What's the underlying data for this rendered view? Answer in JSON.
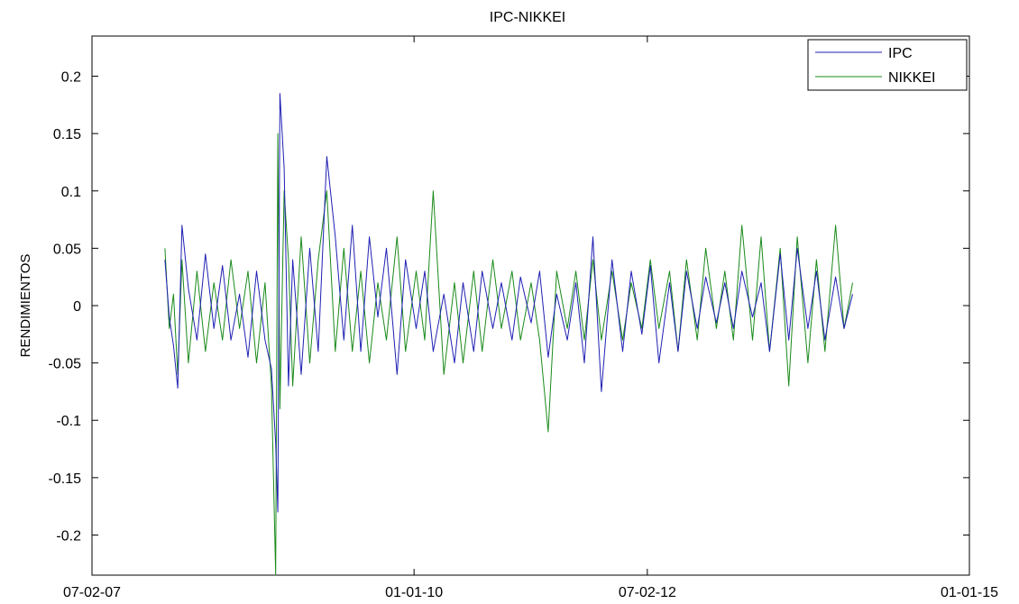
{
  "chart_data": {
    "type": "line",
    "title": "IPC-NIKKEI",
    "xlabel": "",
    "ylabel": "RENDIMIENTOS",
    "x_ticks": [
      "07-02-07",
      "01-01-10",
      "07-02-12",
      "01-01-15"
    ],
    "y_ticks": [
      "-0.2",
      "-0.15",
      "-0.1",
      "-0.05",
      "0",
      "0.05",
      "0.1",
      "0.15",
      "0.2"
    ],
    "ylim": [
      -0.235,
      0.235
    ],
    "legend_position": "top-right",
    "grid": false,
    "series": [
      {
        "name": "IPC",
        "color": "#1f1fb4",
        "points": [
          [
            "2007-10-05",
            0.04
          ],
          [
            "2007-10-19",
            -0.01
          ],
          [
            "2007-11-02",
            -0.035
          ],
          [
            "2007-11-16",
            -0.072
          ],
          [
            "2007-11-30",
            0.07
          ],
          [
            "2007-12-21",
            0.015
          ],
          [
            "2008-01-18",
            -0.03
          ],
          [
            "2008-02-15",
            0.045
          ],
          [
            "2008-03-14",
            -0.02
          ],
          [
            "2008-04-11",
            0.035
          ],
          [
            "2008-05-09",
            -0.03
          ],
          [
            "2008-06-06",
            0.01
          ],
          [
            "2008-07-04",
            -0.045
          ],
          [
            "2008-08-01",
            0.03
          ],
          [
            "2008-08-29",
            -0.03
          ],
          [
            "2008-09-19",
            -0.055
          ],
          [
            "2008-10-03",
            -0.12
          ],
          [
            "2008-10-10",
            -0.18
          ],
          [
            "2008-10-17",
            0.185
          ],
          [
            "2008-10-31",
            0.12
          ],
          [
            "2008-11-14",
            -0.07
          ],
          [
            "2008-11-28",
            0.04
          ],
          [
            "2008-12-26",
            -0.06
          ],
          [
            "2009-01-23",
            0.05
          ],
          [
            "2009-02-20",
            -0.04
          ],
          [
            "2009-03-20",
            0.13
          ],
          [
            "2009-04-17",
            0.06
          ],
          [
            "2009-05-15",
            -0.03
          ],
          [
            "2009-06-12",
            0.07
          ],
          [
            "2009-07-10",
            -0.04
          ],
          [
            "2009-08-07",
            0.06
          ],
          [
            "2009-09-04",
            -0.01
          ],
          [
            "2009-10-02",
            0.05
          ],
          [
            "2009-11-06",
            -0.06
          ],
          [
            "2009-12-04",
            0.04
          ],
          [
            "2010-01-08",
            -0.02
          ],
          [
            "2010-02-05",
            0.03
          ],
          [
            "2010-03-05",
            -0.04
          ],
          [
            "2010-04-09",
            0.01
          ],
          [
            "2010-05-14",
            -0.05
          ],
          [
            "2010-06-11",
            0.02
          ],
          [
            "2010-07-16",
            -0.04
          ],
          [
            "2010-08-13",
            0.03
          ],
          [
            "2010-09-17",
            -0.02
          ],
          [
            "2010-10-15",
            0.02
          ],
          [
            "2010-11-19",
            -0.03
          ],
          [
            "2010-12-17",
            0.025
          ],
          [
            "2011-01-21",
            -0.015
          ],
          [
            "2011-02-18",
            0.03
          ],
          [
            "2011-03-18",
            -0.045
          ],
          [
            "2011-04-15",
            0.01
          ],
          [
            "2011-05-20",
            -0.03
          ],
          [
            "2011-06-17",
            0.02
          ],
          [
            "2011-07-15",
            -0.05
          ],
          [
            "2011-08-12",
            0.06
          ],
          [
            "2011-09-09",
            -0.075
          ],
          [
            "2011-10-14",
            0.04
          ],
          [
            "2011-11-18",
            -0.04
          ],
          [
            "2011-12-16",
            0.03
          ],
          [
            "2012-01-20",
            -0.025
          ],
          [
            "2012-02-17",
            0.035
          ],
          [
            "2012-03-16",
            -0.05
          ],
          [
            "2012-04-20",
            0.02
          ],
          [
            "2012-05-18",
            -0.04
          ],
          [
            "2012-06-15",
            0.03
          ],
          [
            "2012-07-20",
            -0.02
          ],
          [
            "2012-08-17",
            0.025
          ],
          [
            "2012-09-21",
            -0.015
          ],
          [
            "2012-10-19",
            0.02
          ],
          [
            "2012-11-16",
            -0.02
          ],
          [
            "2012-12-14",
            0.03
          ],
          [
            "2013-01-18",
            -0.01
          ],
          [
            "2013-02-15",
            0.02
          ],
          [
            "2013-03-15",
            -0.04
          ],
          [
            "2013-04-19",
            0.045
          ],
          [
            "2013-05-17",
            -0.03
          ],
          [
            "2013-06-14",
            0.05
          ],
          [
            "2013-07-19",
            -0.02
          ],
          [
            "2013-08-16",
            0.03
          ],
          [
            "2013-09-13",
            -0.03
          ],
          [
            "2013-10-18",
            0.025
          ],
          [
            "2013-11-15",
            -0.02
          ],
          [
            "2013-12-13",
            0.01
          ]
        ]
      },
      {
        "name": "NIKKEI",
        "color": "#1a8a1a",
        "points": [
          [
            "2007-10-05",
            0.05
          ],
          [
            "2007-10-19",
            -0.02
          ],
          [
            "2007-11-02",
            0.01
          ],
          [
            "2007-11-16",
            -0.06
          ],
          [
            "2007-11-30",
            0.04
          ],
          [
            "2007-12-21",
            -0.05
          ],
          [
            "2008-01-18",
            0.03
          ],
          [
            "2008-02-15",
            -0.04
          ],
          [
            "2008-03-14",
            0.02
          ],
          [
            "2008-04-11",
            -0.03
          ],
          [
            "2008-05-09",
            0.04
          ],
          [
            "2008-06-06",
            -0.02
          ],
          [
            "2008-07-04",
            0.03
          ],
          [
            "2008-08-01",
            -0.05
          ],
          [
            "2008-08-29",
            0.02
          ],
          [
            "2008-09-19",
            -0.07
          ],
          [
            "2008-10-03",
            -0.235
          ],
          [
            "2008-10-10",
            0.15
          ],
          [
            "2008-10-17",
            -0.09
          ],
          [
            "2008-10-31",
            0.1
          ],
          [
            "2008-11-14",
            0.04
          ],
          [
            "2008-11-28",
            -0.07
          ],
          [
            "2008-12-26",
            0.06
          ],
          [
            "2009-01-23",
            -0.05
          ],
          [
            "2009-02-20",
            0.04
          ],
          [
            "2009-03-20",
            0.1
          ],
          [
            "2009-04-17",
            -0.04
          ],
          [
            "2009-05-15",
            0.05
          ],
          [
            "2009-06-12",
            -0.04
          ],
          [
            "2009-07-10",
            0.03
          ],
          [
            "2009-08-07",
            -0.05
          ],
          [
            "2009-09-04",
            0.02
          ],
          [
            "2009-10-02",
            -0.03
          ],
          [
            "2009-11-06",
            0.06
          ],
          [
            "2009-12-04",
            -0.04
          ],
          [
            "2010-01-08",
            0.03
          ],
          [
            "2010-02-05",
            -0.03
          ],
          [
            "2010-03-05",
            0.1
          ],
          [
            "2010-04-09",
            -0.06
          ],
          [
            "2010-05-14",
            0.02
          ],
          [
            "2010-06-11",
            -0.05
          ],
          [
            "2010-07-16",
            0.03
          ],
          [
            "2010-08-13",
            -0.04
          ],
          [
            "2010-09-17",
            0.04
          ],
          [
            "2010-10-15",
            -0.02
          ],
          [
            "2010-11-19",
            0.03
          ],
          [
            "2010-12-17",
            -0.03
          ],
          [
            "2011-01-21",
            0.02
          ],
          [
            "2011-02-18",
            -0.03
          ],
          [
            "2011-03-18",
            -0.11
          ],
          [
            "2011-04-15",
            0.03
          ],
          [
            "2011-05-20",
            -0.02
          ],
          [
            "2011-06-17",
            0.03
          ],
          [
            "2011-07-15",
            -0.03
          ],
          [
            "2011-08-12",
            0.04
          ],
          [
            "2011-09-09",
            -0.03
          ],
          [
            "2011-10-14",
            0.03
          ],
          [
            "2011-11-18",
            -0.03
          ],
          [
            "2011-12-16",
            0.02
          ],
          [
            "2012-01-20",
            -0.02
          ],
          [
            "2012-02-17",
            0.04
          ],
          [
            "2012-03-16",
            -0.02
          ],
          [
            "2012-04-20",
            0.03
          ],
          [
            "2012-05-18",
            -0.04
          ],
          [
            "2012-06-15",
            0.04
          ],
          [
            "2012-07-20",
            -0.03
          ],
          [
            "2012-08-17",
            0.05
          ],
          [
            "2012-09-21",
            -0.02
          ],
          [
            "2012-10-19",
            0.03
          ],
          [
            "2012-11-16",
            -0.03
          ],
          [
            "2012-12-14",
            0.07
          ],
          [
            "2013-01-18",
            -0.03
          ],
          [
            "2013-02-15",
            0.06
          ],
          [
            "2013-03-15",
            -0.04
          ],
          [
            "2013-04-19",
            0.05
          ],
          [
            "2013-05-17",
            -0.07
          ],
          [
            "2013-06-14",
            0.06
          ],
          [
            "2013-07-19",
            -0.05
          ],
          [
            "2013-08-16",
            0.04
          ],
          [
            "2013-09-13",
            -0.04
          ],
          [
            "2013-10-18",
            0.07
          ],
          [
            "2013-11-15",
            -0.02
          ],
          [
            "2013-12-13",
            0.02
          ]
        ]
      }
    ]
  }
}
